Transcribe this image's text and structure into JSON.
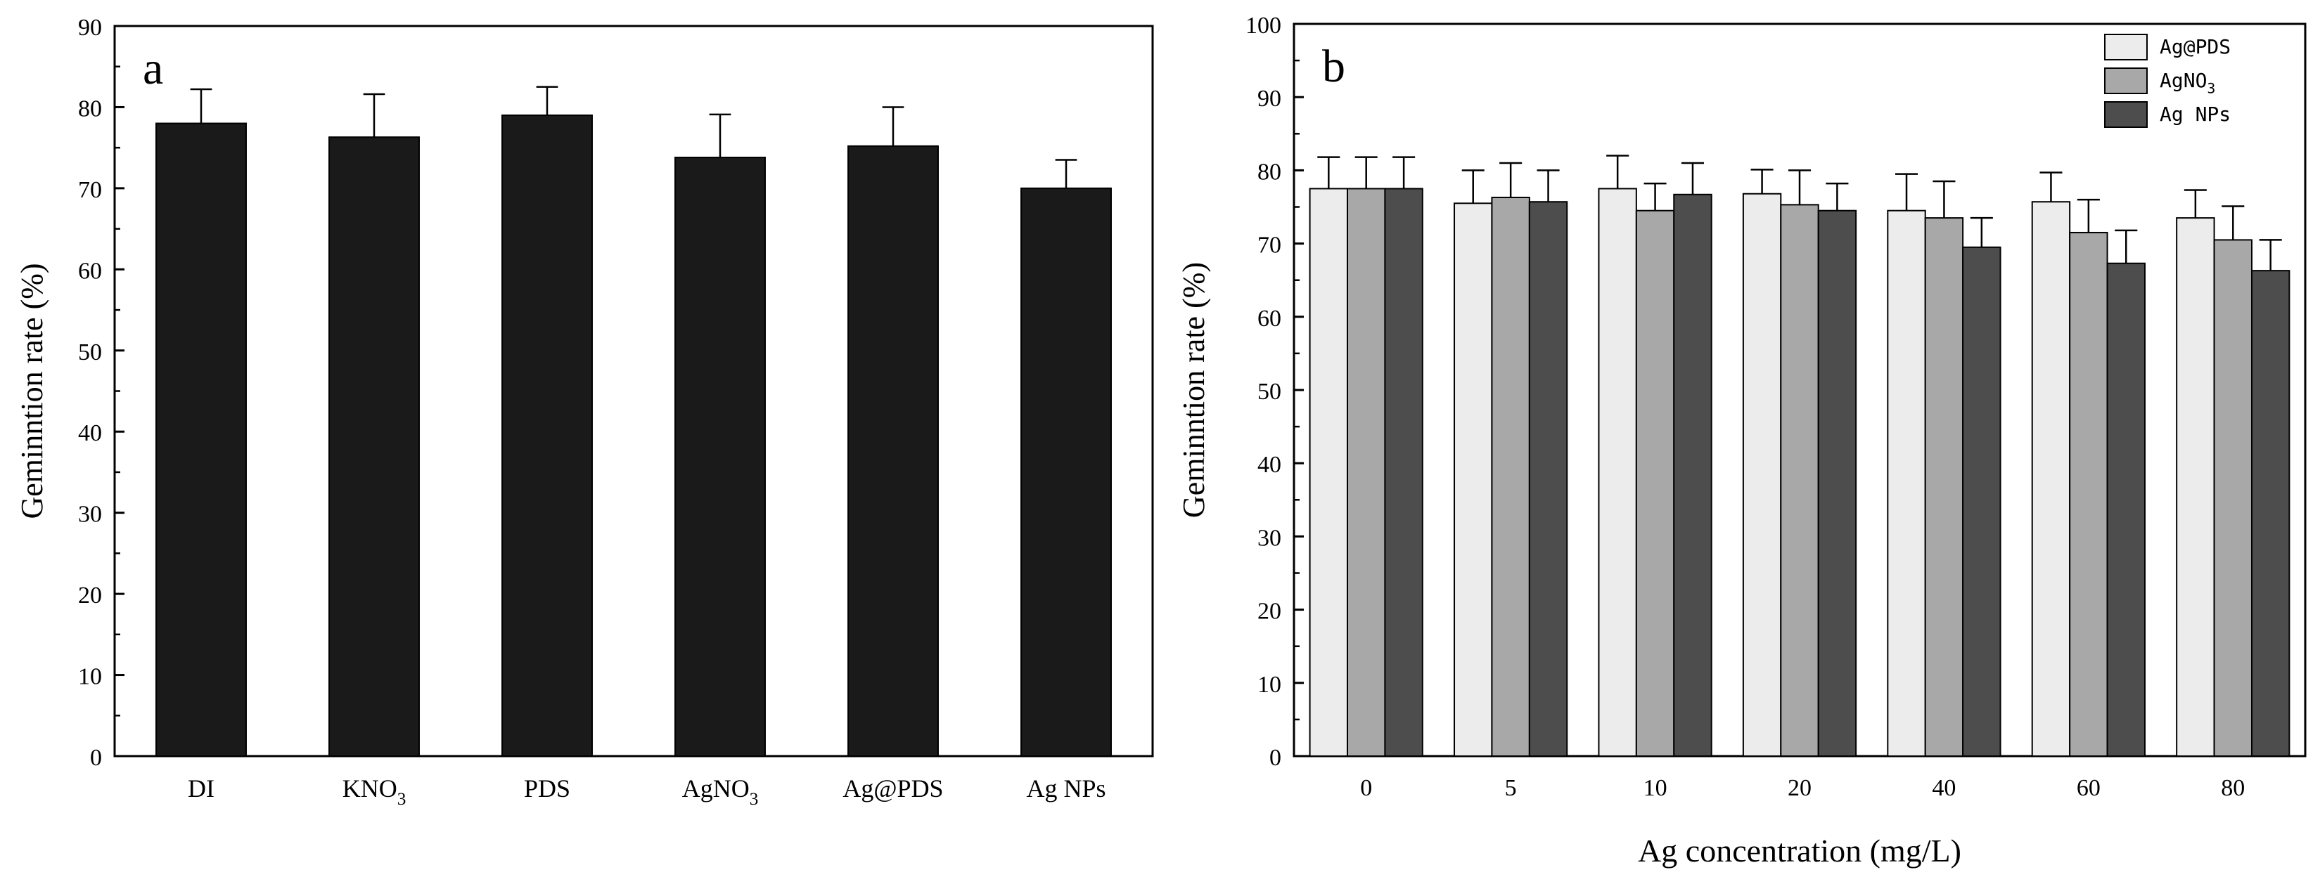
{
  "chart_data": [
    {
      "type": "bar",
      "panel_label": "a",
      "title": "",
      "xlabel": "",
      "ylabel": "Geminntion rate (%)",
      "ylim": [
        0,
        90
      ],
      "yticks": [
        "0",
        "10",
        "20",
        "30",
        "40",
        "50",
        "60",
        "70",
        "80",
        "90"
      ],
      "categories": [
        {
          "main": "DI",
          "sub": ""
        },
        {
          "main": "KNO",
          "sub": "3"
        },
        {
          "main": "PDS",
          "sub": ""
        },
        {
          "main": "AgNO",
          "sub": "3"
        },
        {
          "main": "Ag@PDS",
          "sub": ""
        },
        {
          "main": "Ag NPs",
          "sub": ""
        }
      ],
      "values": [
        78,
        76.3,
        79,
        73.8,
        75.2,
        70
      ],
      "errors": [
        4.2,
        5.3,
        3.5,
        5.3,
        4.8,
        3.5
      ],
      "bar_color": "#1a1a1a"
    },
    {
      "type": "bar",
      "panel_label": "b",
      "title": "",
      "xlabel": "Ag concentration (mg/L)",
      "ylabel": "Geminntion rate (%)",
      "ylim": [
        0,
        100
      ],
      "yticks": [
        "0",
        "10",
        "20",
        "30",
        "40",
        "50",
        "60",
        "70",
        "80",
        "90",
        "100"
      ],
      "categories": [
        "0",
        "5",
        "10",
        "20",
        "40",
        "60",
        "80"
      ],
      "legend_position": "top-right",
      "series": [
        {
          "name": "Ag@PDS",
          "sub": "",
          "color": "#ececec",
          "values": [
            77.5,
            75.5,
            77.5,
            76.8,
            74.5,
            75.7,
            73.5
          ],
          "errors": [
            4.3,
            4.5,
            4.5,
            3.3,
            5.0,
            4.0,
            3.8
          ]
        },
        {
          "name": "AgNO",
          "sub": "3",
          "color": "#a8a8a8",
          "values": [
            77.5,
            76.3,
            74.5,
            75.3,
            73.5,
            71.5,
            70.5
          ],
          "errors": [
            4.3,
            4.7,
            3.7,
            4.7,
            5.0,
            4.5,
            4.6
          ]
        },
        {
          "name": "Ag NPs",
          "sub": "",
          "color": "#4d4d4d",
          "values": [
            77.5,
            75.7,
            76.7,
            74.5,
            69.5,
            67.3,
            66.3
          ],
          "errors": [
            4.3,
            4.3,
            4.3,
            3.7,
            4.0,
            4.5,
            4.2
          ]
        }
      ]
    }
  ]
}
